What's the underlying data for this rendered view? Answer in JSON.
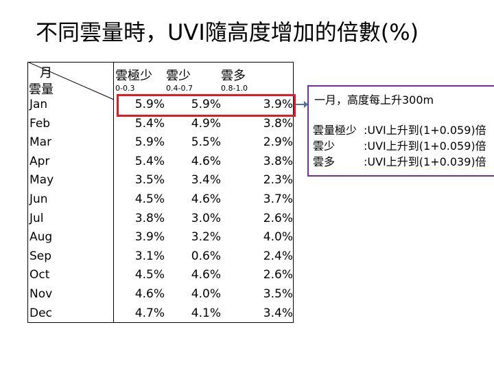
{
  "title": "不同雲量時，UVI隨高度增加的倍數(%)",
  "table": {
    "corner_top": "月",
    "corner_bottom": "雲量",
    "columns": [
      {
        "label": "雲極少",
        "range": "0-0.3"
      },
      {
        "label": "雲少",
        "range": "0.4-0.7"
      },
      {
        "label": "雲多",
        "range": "0.8-1.0"
      }
    ],
    "rows": [
      {
        "month": "Jan",
        "v": [
          "5.9%",
          "5.9%",
          "3.9%"
        ]
      },
      {
        "month": "Feb",
        "v": [
          "5.4%",
          "4.9%",
          "3.8%"
        ]
      },
      {
        "month": "Mar",
        "v": [
          "5.9%",
          "5.5%",
          "2.9%"
        ]
      },
      {
        "month": "Apr",
        "v": [
          "5.4%",
          "4.6%",
          "3.8%"
        ]
      },
      {
        "month": "May",
        "v": [
          "3.5%",
          "3.4%",
          "2.3%"
        ]
      },
      {
        "month": "Jun",
        "v": [
          "4.5%",
          "4.6%",
          "3.7%"
        ]
      },
      {
        "month": "Jul",
        "v": [
          "3.8%",
          "3.0%",
          "2.6%"
        ]
      },
      {
        "month": "Aug",
        "v": [
          "3.9%",
          "3.2%",
          "4.0%"
        ]
      },
      {
        "month": "Sep",
        "v": [
          "3.1%",
          "0.6%",
          "2.4%"
        ]
      },
      {
        "month": "Oct",
        "v": [
          "4.5%",
          "4.6%",
          "2.6%"
        ]
      },
      {
        "month": "Nov",
        "v": [
          "4.6%",
          "4.0%",
          "3.5%"
        ]
      },
      {
        "month": "Dec",
        "v": [
          "4.7%",
          "4.1%",
          "3.4%"
        ]
      }
    ]
  },
  "note": {
    "title": "一月，高度每上升300m",
    "lines": [
      {
        "a": "雲量極少",
        "b": ":UVI上升到(1+0.059)倍"
      },
      {
        "a": "雲少",
        "b": ":UVI上升到(1+0.059)倍"
      },
      {
        "a": "雲多",
        "b": ":UVI上升到(1+0.039)倍"
      }
    ]
  },
  "colors": {
    "highlight": "#e11b22",
    "note_border": "#7030a0"
  }
}
